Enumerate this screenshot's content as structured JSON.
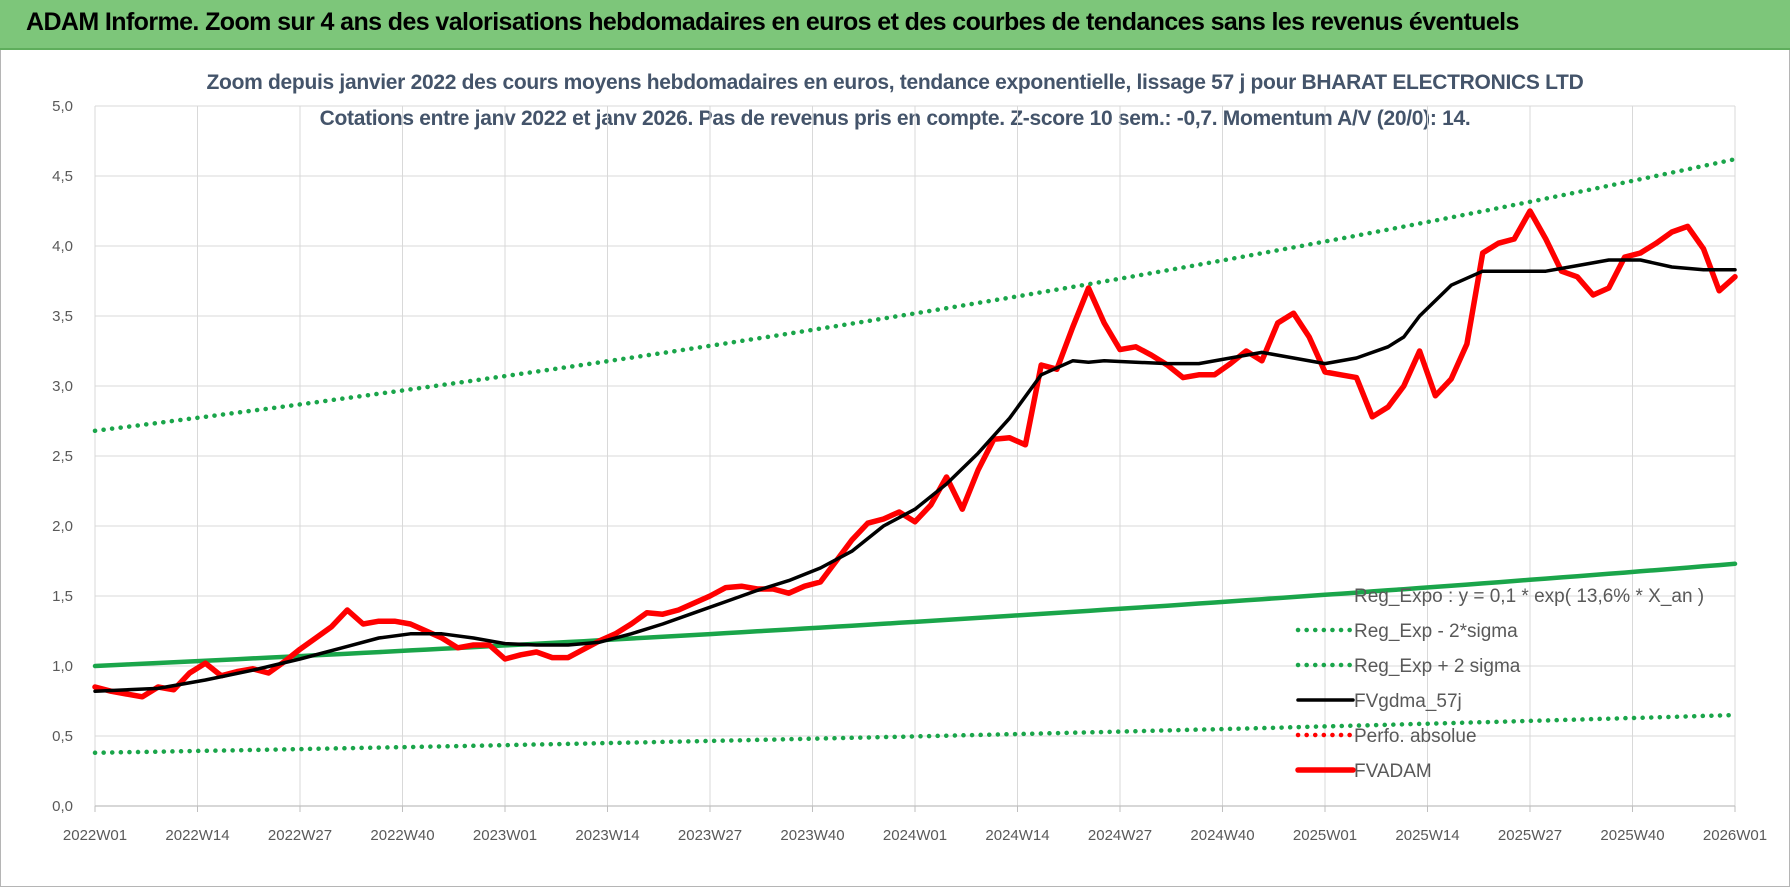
{
  "banner": {
    "title": "ADAM Informe. Zoom sur 4 ans des valorisations hebdomadaires en euros et des courbes de tendances sans les revenus éventuels"
  },
  "colors": {
    "banner_bg": "#7dc67a",
    "title_text": "#44546a",
    "green": "#1aa54a",
    "black": "#000000",
    "red": "#ff0000",
    "grid": "#d9d9d9"
  },
  "chart_data": {
    "type": "line",
    "title_line1": "Zoom depuis janvier 2022 des cours moyens hebdomadaires en euros, tendance exponentielle, lissage 57 j pour BHARAT ELECTRONICS LTD",
    "title_line2": "Cotations entre janv 2022 et janv 2026. Pas de revenus pris en compte. Z-score 10 sem.: -0,7. Momentum A/V (20/0): 14.",
    "x_ticks": [
      "2022W01",
      "2022W14",
      "2022W27",
      "2022W40",
      "2023W01",
      "2023W14",
      "2023W27",
      "2023W40",
      "2024W01",
      "2024W14",
      "2024W27",
      "2024W40",
      "2025W01",
      "2025W14",
      "2025W27",
      "2025W40",
      "2026W01"
    ],
    "y_ticks": [
      "0,0",
      "0,5",
      "1,0",
      "1,5",
      "2,0",
      "2,5",
      "3,0",
      "3,5",
      "4,0",
      "4,5",
      "5,0"
    ],
    "ylim": [
      0,
      5
    ],
    "x_range_weeks": [
      0,
      208
    ],
    "grid": true,
    "legend_position": "bottom-right",
    "series": [
      {
        "name": "Reg_Expo : y = 0,1 * exp( 13,6% *  X_an )",
        "style": "solid-thick",
        "color": "#1aa54a",
        "x": [
          0,
          208
        ],
        "values": [
          1.0,
          1.73
        ],
        "exp_growth": true
      },
      {
        "name": "Reg_Exp - 2*sigma",
        "style": "dotted",
        "color": "#1aa54a",
        "x": [
          0,
          208
        ],
        "values": [
          0.38,
          0.65
        ],
        "exp_growth": true
      },
      {
        "name": "Reg_Exp + 2 sigma",
        "style": "dotted",
        "color": "#1aa54a",
        "x": [
          0,
          208
        ],
        "values": [
          2.68,
          4.62
        ],
        "exp_growth": true
      },
      {
        "name": "FVgdma_57j",
        "style": "solid",
        "color": "#000000",
        "x": [
          0,
          8,
          14,
          20,
          26,
          32,
          36,
          40,
          44,
          48,
          52,
          56,
          60,
          64,
          68,
          72,
          76,
          80,
          84,
          88,
          92,
          96,
          100,
          104,
          108,
          112,
          116,
          120,
          124,
          126,
          128,
          132,
          136,
          140,
          144,
          148,
          152,
          156,
          160,
          164,
          166,
          168,
          172,
          176,
          180,
          184,
          188,
          192,
          196,
          200,
          204,
          208
        ],
        "values": [
          0.82,
          0.84,
          0.9,
          0.97,
          1.05,
          1.14,
          1.2,
          1.23,
          1.23,
          1.2,
          1.16,
          1.15,
          1.15,
          1.17,
          1.23,
          1.3,
          1.38,
          1.46,
          1.54,
          1.61,
          1.7,
          1.82,
          2.0,
          2.12,
          2.3,
          2.52,
          2.77,
          3.08,
          3.18,
          3.17,
          3.18,
          3.17,
          3.16,
          3.16,
          3.2,
          3.24,
          3.2,
          3.16,
          3.2,
          3.28,
          3.35,
          3.5,
          3.72,
          3.82,
          3.82,
          3.82,
          3.86,
          3.9,
          3.9,
          3.85,
          3.83,
          3.83
        ]
      },
      {
        "name": "Perfo. absolue",
        "style": "dotted",
        "color": "#ff0000",
        "x": [],
        "values": []
      },
      {
        "name": "FVADAM",
        "style": "solid-thick",
        "color": "#ff0000",
        "x": [
          0,
          2,
          4,
          6,
          8,
          10,
          12,
          14,
          16,
          18,
          20,
          22,
          24,
          26,
          28,
          30,
          32,
          34,
          36,
          38,
          40,
          42,
          44,
          46,
          48,
          50,
          52,
          54,
          56,
          58,
          60,
          62,
          64,
          66,
          68,
          70,
          72,
          74,
          76,
          78,
          80,
          82,
          84,
          86,
          88,
          90,
          92,
          94,
          96,
          98,
          100,
          102,
          104,
          106,
          108,
          110,
          112,
          114,
          116,
          118,
          120,
          122,
          124,
          126,
          128,
          130,
          132,
          134,
          136,
          138,
          140,
          142,
          144,
          146,
          148,
          150,
          152,
          154,
          156,
          158,
          160,
          162,
          164,
          166,
          168,
          170,
          172,
          174,
          176,
          178,
          180,
          182,
          184,
          186,
          188,
          190,
          192,
          194,
          196,
          198,
          200,
          202,
          204,
          206,
          208
        ],
        "values": [
          0.85,
          0.82,
          0.8,
          0.78,
          0.85,
          0.83,
          0.95,
          1.02,
          0.93,
          0.96,
          0.98,
          0.95,
          1.03,
          1.12,
          1.2,
          1.28,
          1.4,
          1.3,
          1.32,
          1.32,
          1.3,
          1.25,
          1.2,
          1.13,
          1.15,
          1.15,
          1.05,
          1.08,
          1.1,
          1.06,
          1.06,
          1.12,
          1.18,
          1.23,
          1.3,
          1.38,
          1.37,
          1.4,
          1.45,
          1.5,
          1.56,
          1.57,
          1.55,
          1.55,
          1.52,
          1.57,
          1.6,
          1.75,
          1.9,
          2.02,
          2.05,
          2.1,
          2.03,
          2.15,
          2.35,
          2.12,
          2.4,
          2.62,
          2.63,
          2.58,
          3.15,
          3.12,
          3.42,
          3.7,
          3.45,
          3.26,
          3.28,
          3.22,
          3.15,
          3.06,
          3.08,
          3.08,
          3.16,
          3.25,
          3.18,
          3.45,
          3.52,
          3.35,
          3.1,
          3.08,
          3.06,
          2.78,
          2.85,
          3.0,
          3.25,
          2.93,
          3.05,
          3.3,
          3.95,
          4.02,
          4.05,
          4.25,
          4.05,
          3.82,
          3.78,
          3.65,
          3.7,
          3.92,
          3.95,
          4.02,
          4.1,
          4.14,
          3.98,
          3.68,
          3.78
        ]
      }
    ]
  }
}
